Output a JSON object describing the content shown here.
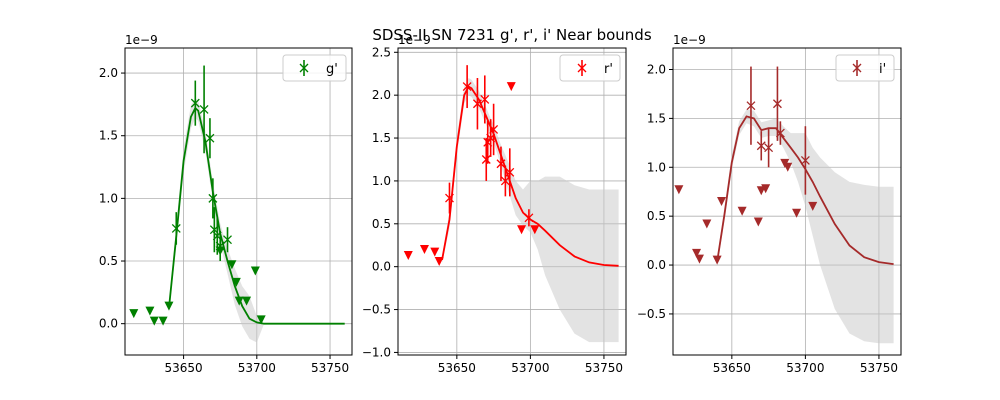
{
  "suptitle": "SDSS-II SN 7231  g', r', i' Near bounds",
  "chart_data": [
    {
      "type": "scatter",
      "band": "g",
      "color": "#008000",
      "legend": "g'",
      "offset_text": "1e−9",
      "xlim": [
        53610,
        53765
      ],
      "ylim": [
        -0.25,
        2.2
      ],
      "xticks": [
        53650,
        53700,
        53750
      ],
      "yticks": [
        0.0,
        0.5,
        1.0,
        1.5,
        2.0
      ],
      "xtick_labels": [
        "53650",
        "53700",
        "53750"
      ],
      "ytick_labels": [
        "0.0",
        "0.5",
        "1.0",
        "1.5",
        "2.0"
      ],
      "detections": [
        {
          "x": 53645,
          "y": 0.76,
          "err": 0.13
        },
        {
          "x": 53658,
          "y": 1.76,
          "err": 0.18
        },
        {
          "x": 53664,
          "y": 1.71,
          "err": 0.35
        },
        {
          "x": 53668,
          "y": 1.48,
          "err": 0.16
        },
        {
          "x": 53670,
          "y": 1.0,
          "err": 0.16
        },
        {
          "x": 53671,
          "y": 0.75,
          "err": 0.18
        },
        {
          "x": 53673,
          "y": 0.7,
          "err": 0.15
        },
        {
          "x": 53675,
          "y": 0.62,
          "err": 0.12
        },
        {
          "x": 53680,
          "y": 0.67,
          "err": 0.1
        }
      ],
      "upper_limits": [
        {
          "x": 53616,
          "y": 0.08
        },
        {
          "x": 53627,
          "y": 0.1
        },
        {
          "x": 53630,
          "y": 0.02
        },
        {
          "x": 53636,
          "y": 0.02
        },
        {
          "x": 53640,
          "y": 0.14
        },
        {
          "x": 53675,
          "y": 0.58
        },
        {
          "x": 53683,
          "y": 0.47
        },
        {
          "x": 53686,
          "y": 0.33
        },
        {
          "x": 53688,
          "y": 0.18
        },
        {
          "x": 53693,
          "y": 0.18
        },
        {
          "x": 53699,
          "y": 0.42
        },
        {
          "x": 53703,
          "y": 0.03
        }
      ],
      "model": {
        "x": [
          53640,
          53645,
          53650,
          53655,
          53658,
          53660,
          53665,
          53670,
          53675,
          53680,
          53685,
          53690,
          53695,
          53700,
          53705,
          53710,
          53720,
          53730,
          53740,
          53750,
          53760
        ],
        "y": [
          0.12,
          0.7,
          1.3,
          1.65,
          1.72,
          1.7,
          1.45,
          1.05,
          0.72,
          0.5,
          0.3,
          0.14,
          0.04,
          0.01,
          0.0,
          0.0,
          0.0,
          0.0,
          0.0,
          0.0,
          0.0
        ],
        "lower": [
          0.08,
          0.62,
          1.2,
          1.56,
          1.64,
          1.62,
          1.37,
          0.97,
          0.64,
          0.4,
          0.15,
          -0.02,
          -0.12,
          -0.15,
          0.0,
          0.0,
          0.0,
          0.0,
          0.0,
          0.0,
          0.0
        ],
        "upper": [
          0.16,
          0.78,
          1.4,
          1.74,
          1.8,
          1.78,
          1.53,
          1.13,
          0.8,
          0.6,
          0.44,
          0.3,
          0.22,
          0.06,
          0.0,
          0.0,
          0.0,
          0.0,
          0.0,
          0.0,
          0.0
        ]
      }
    },
    {
      "type": "scatter",
      "band": "r",
      "color": "#ff0000",
      "legend": "r'",
      "offset_text": "1e−9",
      "xlim": [
        53610,
        53765
      ],
      "ylim": [
        -1.03,
        2.55
      ],
      "xticks": [
        53650,
        53700,
        53750
      ],
      "yticks": [
        -1.0,
        -0.5,
        0.0,
        0.5,
        1.0,
        1.5,
        2.0,
        2.5
      ],
      "xtick_labels": [
        "53650",
        "53700",
        "53750"
      ],
      "ytick_labels": [
        "−1.0",
        "−0.5",
        "0.0",
        "0.5",
        "1.0",
        "1.5",
        "2.0",
        "2.5"
      ],
      "detections": [
        {
          "x": 53645,
          "y": 0.8,
          "err": 0.18
        },
        {
          "x": 53657,
          "y": 2.1,
          "err": 0.25
        },
        {
          "x": 53664,
          "y": 1.9,
          "err": 0.3
        },
        {
          "x": 53669,
          "y": 1.95,
          "err": 0.28
        },
        {
          "x": 53670,
          "y": 1.25,
          "err": 0.25
        },
        {
          "x": 53671,
          "y": 1.45,
          "err": 0.25
        },
        {
          "x": 53673,
          "y": 1.5,
          "err": 0.22
        },
        {
          "x": 53675,
          "y": 1.6,
          "err": 0.3
        },
        {
          "x": 53680,
          "y": 1.2,
          "err": 0.2
        },
        {
          "x": 53683,
          "y": 1.0,
          "err": 0.18
        },
        {
          "x": 53686,
          "y": 1.1,
          "err": 0.28
        },
        {
          "x": 53699,
          "y": 0.57,
          "err": 0.1
        }
      ],
      "upper_limits": [
        {
          "x": 53617,
          "y": 0.13
        },
        {
          "x": 53628,
          "y": 0.2
        },
        {
          "x": 53635,
          "y": 0.17
        },
        {
          "x": 53638,
          "y": 0.06
        },
        {
          "x": 53687,
          "y": 2.1
        },
        {
          "x": 53694,
          "y": 0.43
        },
        {
          "x": 53703,
          "y": 0.43
        }
      ],
      "model": {
        "x": [
          53640,
          53645,
          53650,
          53655,
          53658,
          53660,
          53665,
          53670,
          53675,
          53680,
          53685,
          53690,
          53695,
          53700,
          53705,
          53710,
          53720,
          53730,
          53740,
          53750,
          53760
        ],
        "y": [
          0.08,
          0.55,
          1.4,
          2.0,
          2.1,
          2.08,
          1.95,
          1.75,
          1.55,
          1.3,
          1.05,
          0.8,
          0.63,
          0.55,
          0.5,
          0.42,
          0.25,
          0.12,
          0.05,
          0.02,
          0.01
        ],
        "lower": [
          0.04,
          0.45,
          1.3,
          1.9,
          2.0,
          1.98,
          1.85,
          1.65,
          1.45,
          1.18,
          0.88,
          0.6,
          0.48,
          0.4,
          0.2,
          -0.1,
          -0.5,
          -0.78,
          -0.88,
          -0.88,
          -0.88
        ],
        "upper": [
          0.12,
          0.65,
          1.5,
          2.1,
          2.2,
          2.18,
          2.05,
          1.85,
          1.65,
          1.42,
          1.22,
          1.0,
          0.9,
          1.0,
          1.0,
          1.05,
          1.05,
          0.95,
          0.9,
          0.9,
          0.9
        ]
      }
    },
    {
      "type": "scatter",
      "band": "i",
      "color": "#a52a2a",
      "legend": "i'",
      "offset_text": "1e−9",
      "xlim": [
        53610,
        53765
      ],
      "ylim": [
        -0.92,
        2.22
      ],
      "xticks": [
        53650,
        53700,
        53750
      ],
      "yticks": [
        -0.5,
        0.0,
        0.5,
        1.0,
        1.5,
        2.0
      ],
      "xtick_labels": [
        "53650",
        "53700",
        "53750"
      ],
      "ytick_labels": [
        "−0.5",
        "0.0",
        "0.5",
        "1.0",
        "1.5",
        "2.0"
      ],
      "detections": [
        {
          "x": 53663,
          "y": 1.63,
          "err": 0.4
        },
        {
          "x": 53670,
          "y": 1.22,
          "err": 0.15
        },
        {
          "x": 53675,
          "y": 1.2,
          "err": 0.2
        },
        {
          "x": 53681,
          "y": 1.65,
          "err": 0.38
        },
        {
          "x": 53683,
          "y": 1.35,
          "err": 0.12
        },
        {
          "x": 53700,
          "y": 1.07,
          "err": 0.35
        }
      ],
      "upper_limits": [
        {
          "x": 53614,
          "y": 0.77
        },
        {
          "x": 53626,
          "y": 0.12
        },
        {
          "x": 53628,
          "y": 0.06
        },
        {
          "x": 53633,
          "y": 0.42
        },
        {
          "x": 53640,
          "y": 0.05
        },
        {
          "x": 53643,
          "y": 0.65
        },
        {
          "x": 53657,
          "y": 0.55
        },
        {
          "x": 53668,
          "y": 0.44
        },
        {
          "x": 53670,
          "y": 0.76
        },
        {
          "x": 53673,
          "y": 0.78
        },
        {
          "x": 53686,
          "y": 1.04
        },
        {
          "x": 53688,
          "y": 1.0
        },
        {
          "x": 53694,
          "y": 0.53
        },
        {
          "x": 53705,
          "y": 0.6
        }
      ],
      "model": {
        "x": [
          53640,
          53645,
          53650,
          53655,
          53660,
          53665,
          53670,
          53675,
          53680,
          53685,
          53690,
          53695,
          53700,
          53705,
          53710,
          53720,
          53730,
          53740,
          53750,
          53760
        ],
        "y": [
          0.03,
          0.52,
          1.05,
          1.4,
          1.52,
          1.5,
          1.38,
          1.4,
          1.4,
          1.3,
          1.2,
          1.1,
          0.98,
          0.85,
          0.7,
          0.42,
          0.2,
          0.08,
          0.03,
          0.01
        ],
        "lower": [
          -0.01,
          0.45,
          0.98,
          1.33,
          1.45,
          1.42,
          1.3,
          1.32,
          1.32,
          1.2,
          1.05,
          0.85,
          0.6,
          0.3,
          0.0,
          -0.45,
          -0.7,
          -0.78,
          -0.8,
          -0.8
        ],
        "upper": [
          0.07,
          0.6,
          1.12,
          1.47,
          1.59,
          1.58,
          1.46,
          1.48,
          1.5,
          1.42,
          1.35,
          1.35,
          1.35,
          1.2,
          1.1,
          0.95,
          0.85,
          0.82,
          0.8,
          0.8
        ]
      }
    }
  ]
}
